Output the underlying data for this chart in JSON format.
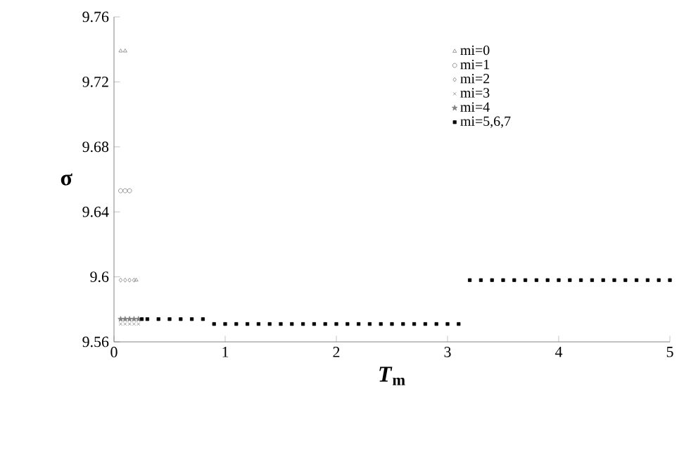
{
  "chart_data": {
    "type": "scatter",
    "xlabel": "*T*$_{m}$",
    "ylabel": "σ",
    "xlim": [
      0,
      5
    ],
    "ylim": [
      9.56,
      9.76
    ],
    "xticks": [
      0,
      1,
      2,
      3,
      4,
      5
    ],
    "yticks": [
      9.56,
      9.6,
      9.64,
      9.68,
      9.72,
      9.76
    ],
    "grid": false,
    "legend": "top right",
    "series": [
      {
        "name": "mi=0",
        "color": "#808080",
        "marker": "triangle",
        "x": [
          0.06,
          0.1,
          0.2
        ],
        "values": [
          9.739,
          9.739,
          9.598
        ]
      },
      {
        "name": "mi=1",
        "color": "#808080",
        "marker": "circle",
        "x": [
          0.06,
          0.1,
          0.14
        ],
        "values": [
          9.653,
          9.653,
          9.653
        ]
      },
      {
        "name": "mi=2",
        "color": "#808080",
        "marker": "diamond",
        "x": [
          0.06,
          0.1,
          0.14,
          0.18
        ],
        "values": [
          9.598,
          9.598,
          9.598,
          9.598
        ]
      },
      {
        "name": "mi=3",
        "color": "#808080",
        "marker": "cross",
        "x": [
          0.06,
          0.1,
          0.14,
          0.18,
          0.22
        ],
        "values": [
          9.571,
          9.571,
          9.571,
          9.571,
          9.571
        ]
      },
      {
        "name": "mi=4",
        "color": "#808080",
        "marker": "star",
        "x": [
          0.06,
          0.1,
          0.14,
          0.18,
          0.22
        ],
        "values": [
          9.574,
          9.574,
          9.574,
          9.574,
          9.574
        ]
      },
      {
        "name": "mi=5,6,7",
        "color": "#000000",
        "marker": "square",
        "x": [
          0.25,
          0.3,
          0.4,
          0.5,
          0.6,
          0.7,
          0.8,
          0.9,
          1.0,
          1.1,
          1.2,
          1.3,
          1.4,
          1.5,
          1.6,
          1.7,
          1.8,
          1.9,
          2.0,
          2.1,
          2.2,
          2.3,
          2.4,
          2.5,
          2.6,
          2.7,
          2.8,
          2.9,
          3.0,
          3.1,
          3.2,
          3.3,
          3.4,
          3.5,
          3.6,
          3.7,
          3.8,
          3.9,
          4.0,
          4.1,
          4.2,
          4.3,
          4.4,
          4.5,
          4.6,
          4.7,
          4.8,
          4.9,
          5.0
        ],
        "values": [
          9.574,
          9.574,
          9.574,
          9.574,
          9.574,
          9.574,
          9.574,
          9.571,
          9.571,
          9.571,
          9.571,
          9.571,
          9.571,
          9.571,
          9.571,
          9.571,
          9.571,
          9.571,
          9.571,
          9.571,
          9.571,
          9.571,
          9.571,
          9.571,
          9.571,
          9.571,
          9.571,
          9.571,
          9.571,
          9.571,
          9.598,
          9.598,
          9.598,
          9.598,
          9.598,
          9.598,
          9.598,
          9.598,
          9.598,
          9.598,
          9.598,
          9.598,
          9.598,
          9.598,
          9.598,
          9.598,
          9.598,
          9.598,
          9.598
        ]
      }
    ]
  }
}
